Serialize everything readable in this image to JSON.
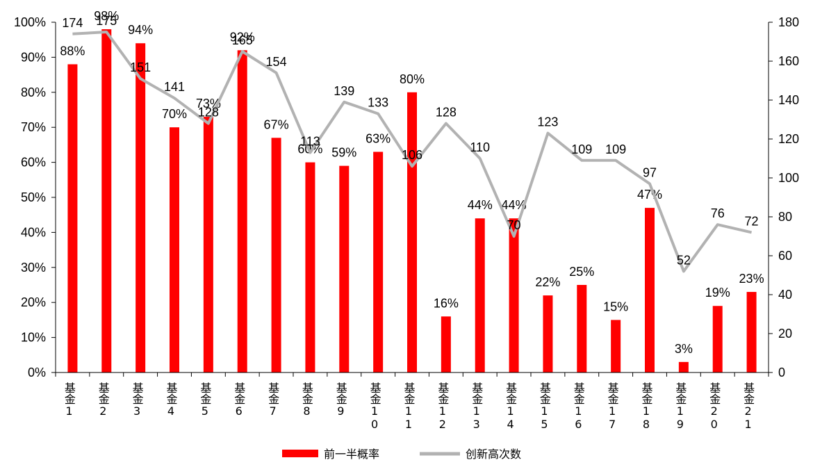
{
  "chart_data": {
    "type": "bar+line",
    "categories": [
      "基金1",
      "基金2",
      "基金3",
      "基金4",
      "基金5",
      "基金6",
      "基金7",
      "基金8",
      "基金9",
      "基金10",
      "基金11",
      "基金12",
      "基金13",
      "基金14",
      "基金15",
      "基金16",
      "基金17",
      "基金18",
      "基金19",
      "基金20",
      "基金21"
    ],
    "series": [
      {
        "name": "前一半概率",
        "type": "bar",
        "axis": "left",
        "color": "#ff0000",
        "values": [
          88,
          98,
          94,
          70,
          73,
          92,
          67,
          60,
          59,
          63,
          80,
          16,
          44,
          44,
          22,
          25,
          15,
          47,
          3,
          19,
          23
        ],
        "labels": [
          "88%",
          "98%",
          "94%",
          "70%",
          "73%",
          "92%",
          "67%",
          "60%",
          "59%",
          "63%",
          "80%",
          "16%",
          "44%",
          "44%",
          "22%",
          "25%",
          "15%",
          "47%",
          "3%",
          "19%",
          "23%"
        ]
      },
      {
        "name": "创新高次数",
        "type": "line",
        "axis": "right",
        "color": "#b2b2b2",
        "values": [
          174,
          175,
          151,
          141,
          128,
          165,
          154,
          113,
          139,
          133,
          106,
          128,
          110,
          70,
          123,
          109,
          109,
          97,
          52,
          76,
          72
        ]
      }
    ],
    "left_axis": {
      "min": 0,
      "max": 100,
      "step": 10,
      "tick_labels": [
        "0%",
        "10%",
        "20%",
        "30%",
        "40%",
        "50%",
        "60%",
        "70%",
        "80%",
        "90%",
        "100%"
      ]
    },
    "right_axis": {
      "min": 0,
      "max": 180,
      "step": 20,
      "tick_labels": [
        "0",
        "20",
        "40",
        "60",
        "80",
        "100",
        "120",
        "140",
        "160",
        "180"
      ]
    },
    "legend": {
      "position": "bottom",
      "items": [
        "前一半概率",
        "创新高次数"
      ]
    },
    "grid": false
  }
}
